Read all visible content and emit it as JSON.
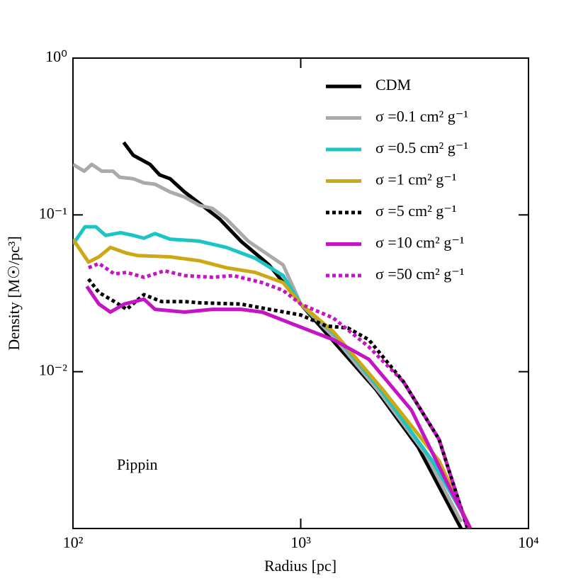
{
  "chart_data": {
    "type": "line",
    "xlabel": "Radius [pc]",
    "ylabel": "Density [M☉/pc³]",
    "annotation": "Pippin",
    "xscale": "log",
    "yscale": "log",
    "xlim": [
      100,
      10000
    ],
    "ylim": [
      0.001,
      1
    ],
    "xticks": [
      {
        "value": 100,
        "label": "10²"
      },
      {
        "value": 1000,
        "label": "10³"
      },
      {
        "value": 10000,
        "label": "10⁴"
      }
    ],
    "yticks": [
      {
        "value": 1,
        "label": "10⁰"
      },
      {
        "value": 0.1,
        "label": "10⁻¹"
      },
      {
        "value": 0.01,
        "label": "10⁻²"
      }
    ],
    "legend": "upper right",
    "series": [
      {
        "name": "CDM",
        "color": "#000000",
        "dashed": false,
        "x": [
          167,
          184,
          218,
          240,
          267,
          309,
          369,
          441,
          546,
          726,
          1000,
          1290,
          2140,
          3280,
          5060
        ],
        "values": [
          0.29,
          0.24,
          0.21,
          0.18,
          0.17,
          0.14,
          0.115,
          0.094,
          0.068,
          0.048,
          0.027,
          0.0177,
          0.0077,
          0.0033,
          0.001
        ]
      },
      {
        "name": "σ =0.1 cm² g⁻¹",
        "color": "#aaaaaa",
        "dashed": false,
        "x": [
          100,
          112,
          121,
          134,
          150,
          160,
          184,
          205,
          229,
          267,
          309,
          359,
          410,
          472,
          588,
          837,
          1000,
          1390,
          2290,
          3530,
          5070
        ],
        "values": [
          0.21,
          0.19,
          0.21,
          0.19,
          0.19,
          0.174,
          0.17,
          0.16,
          0.157,
          0.14,
          0.13,
          0.115,
          0.11,
          0.094,
          0.068,
          0.048,
          0.027,
          0.0168,
          0.007,
          0.003,
          0.0011
        ]
      },
      {
        "name": "σ =0.5 cm² g⁻¹",
        "color": "#1cc4c4",
        "dashed": false,
        "x": [
          100,
          113,
          126,
          139,
          162,
          184,
          205,
          229,
          267,
          359,
          472,
          630,
          837,
          1000,
          1390,
          2290,
          3780,
          5400
        ],
        "values": [
          0.065,
          0.084,
          0.084,
          0.074,
          0.077,
          0.074,
          0.071,
          0.076,
          0.07,
          0.068,
          0.062,
          0.053,
          0.041,
          0.027,
          0.0177,
          0.0074,
          0.0027,
          0.0011
        ]
      },
      {
        "name": "σ =1 cm² g⁻¹",
        "color": "#cca914",
        "dashed": false,
        "x": [
          100,
          117,
          130,
          146,
          172,
          193,
          267,
          359,
          472,
          630,
          837,
          1000,
          1390,
          2290,
          4050,
          5560
        ],
        "values": [
          0.07,
          0.05,
          0.054,
          0.062,
          0.057,
          0.055,
          0.054,
          0.051,
          0.046,
          0.043,
          0.037,
          0.027,
          0.018,
          0.0077,
          0.0027,
          0.001
        ]
      },
      {
        "name": "σ =5 cm² g⁻¹",
        "color": "#000000",
        "dashed": true,
        "x": [
          117,
          130,
          152,
          172,
          205,
          245,
          309,
          359,
          546,
          726,
          1000,
          1290,
          1610,
          1990,
          2830,
          4050,
          5400
        ],
        "values": [
          0.039,
          0.032,
          0.028,
          0.025,
          0.031,
          0.028,
          0.028,
          0.0275,
          0.027,
          0.025,
          0.023,
          0.0196,
          0.019,
          0.016,
          0.0086,
          0.0037,
          0.001
        ]
      },
      {
        "name": "σ =10 cm² g⁻¹",
        "color": "#c414c4",
        "dashed": false,
        "x": [
          115,
          130,
          146,
          168,
          205,
          229,
          309,
          410,
          546,
          677,
          967,
          1390,
          1990,
          3060,
          4360,
          5560
        ],
        "values": [
          0.035,
          0.027,
          0.024,
          0.027,
          0.029,
          0.025,
          0.024,
          0.025,
          0.025,
          0.024,
          0.0196,
          0.016,
          0.012,
          0.0057,
          0.002,
          0.001
        ]
      },
      {
        "name": "σ =50 cm² g⁻¹",
        "color": "#c414c4",
        "dashed": true,
        "x": [
          117,
          130,
          152,
          172,
          205,
          252,
          309,
          410,
          506,
          677,
          837,
          1000,
          1390,
          1990,
          2830,
          4050,
          5400
        ],
        "values": [
          0.046,
          0.049,
          0.042,
          0.043,
          0.04,
          0.044,
          0.041,
          0.04,
          0.041,
          0.037,
          0.033,
          0.027,
          0.022,
          0.0144,
          0.0086,
          0.0037,
          0.001
        ]
      }
    ]
  }
}
